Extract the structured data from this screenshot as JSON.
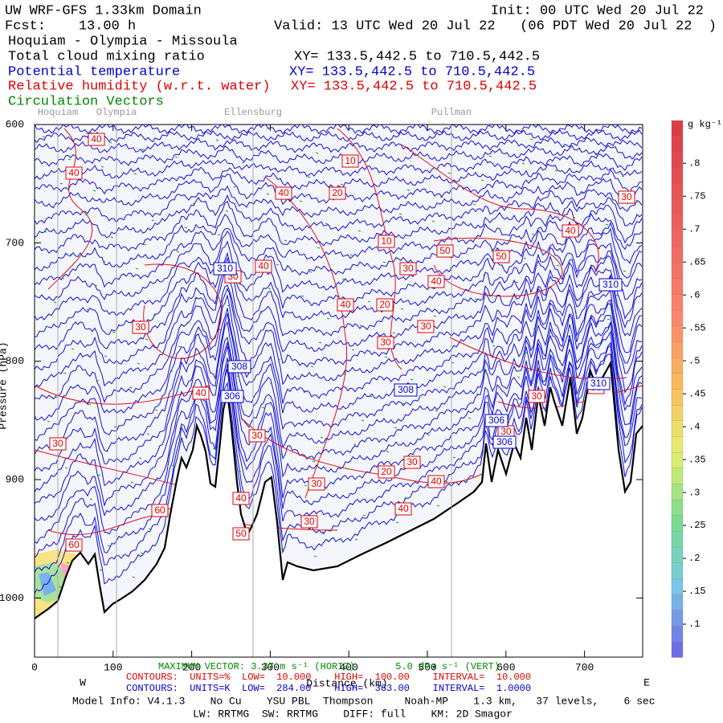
{
  "chart_data": {
    "type": "cross-section",
    "title": "UW WRF-GFS 1.33km Domain",
    "init": "Init: 00 UTC Wed 20 Jul 22",
    "forecast": "Fcst:    13.00 h",
    "valid": "Valid: 13 UTC Wed 20 Jul 22   (06 PDT Wed 20 Jul 22  )",
    "route": "Hoquiam - Olympia - Missoula",
    "fields": [
      {
        "name": "Total cloud mixing ratio",
        "xy": "XY= 133.5,442.5 to 710.5,442.5",
        "color": "#000000"
      },
      {
        "name": "Potential temperature",
        "xy": "XY= 133.5,442.5 to 710.5,442.5",
        "color": "#0000cc"
      },
      {
        "name": "Relative humidity (w.r.t. water)",
        "xy": "XY= 133.5,442.5 to 710.5,442.5",
        "color": "#dd0000"
      },
      {
        "name": "Circulation Vectors",
        "color": "#008800"
      }
    ],
    "locations": [
      "Hoquiam",
      "Olympia",
      "Ellensburg",
      "Pullman"
    ],
    "y_label": "Pressure (hPa)",
    "x_label": "Distance (km)",
    "west": "W",
    "east": "E",
    "ylim": [
      1050,
      600
    ],
    "yticks": [
      600,
      700,
      800,
      900,
      {
        "value": 1000,
        "label": "1000"
      }
    ],
    "xlim": [
      0,
      774
    ],
    "xticks": [
      0,
      100,
      200,
      300,
      400,
      500,
      600,
      700
    ],
    "colorbar": {
      "unit": "g kg⁻¹",
      "lim": [
        0.05,
        0.865
      ],
      "ticks": [
        {
          "value": 0.1,
          "label": ".1"
        },
        {
          "value": 0.15,
          "label": ".15"
        },
        {
          "value": 0.2,
          "label": ".2"
        },
        {
          "value": 0.25,
          "label": ".25"
        },
        {
          "value": 0.3,
          "label": ".3"
        },
        {
          "value": 0.35,
          "label": ".35"
        },
        {
          "value": 0.4,
          "label": ".4"
        },
        {
          "value": 0.45,
          "label": ".45"
        },
        {
          "value": 0.5,
          "label": ".5"
        },
        {
          "value": 0.55,
          "label": ".55"
        },
        {
          "value": 0.6,
          "label": ".6"
        },
        {
          "value": 0.65,
          "label": ".65"
        },
        {
          "value": 0.7,
          "label": ".7"
        },
        {
          "value": 0.75,
          "label": ".75"
        },
        {
          "value": 0.8,
          "label": ".8"
        }
      ]
    },
    "rh_labels": [
      40,
      40,
      10,
      20,
      40,
      30,
      40,
      10,
      50,
      50,
      40,
      30,
      30,
      40,
      40,
      20,
      30,
      30,
      30,
      40,
      30,
      30,
      30,
      30,
      30,
      30,
      20,
      40,
      30,
      40,
      60,
      40,
      30,
      50,
      60
    ],
    "theta_labels": [
      310,
      310,
      308,
      306,
      308,
      306,
      306,
      310
    ],
    "max_vector": "MAXIMUM VECTOR: 3.37 m s⁻¹ (HORIZ)       5.0 dPa s⁻¹ (VERT)",
    "contours_rh": "CONTOURS:  UNITS=%  LOW=  10.000    HIGH=  100.00    INTERVAL=  10.000",
    "contours_theta": "CONTOURS:  UNITS=K  LOW=  284.00    HIGH=  363.00    INTERVAL=  1.0000",
    "model_info": "Model Info: V4.1.3    No Cu    YSU PBL  Thompson     Noah-MP    1.3 km,   37 levels,    6 sec",
    "physics": "LW: RRTMG  SW: RRTMG    DIFF: full    KM: 2D Smagor"
  }
}
